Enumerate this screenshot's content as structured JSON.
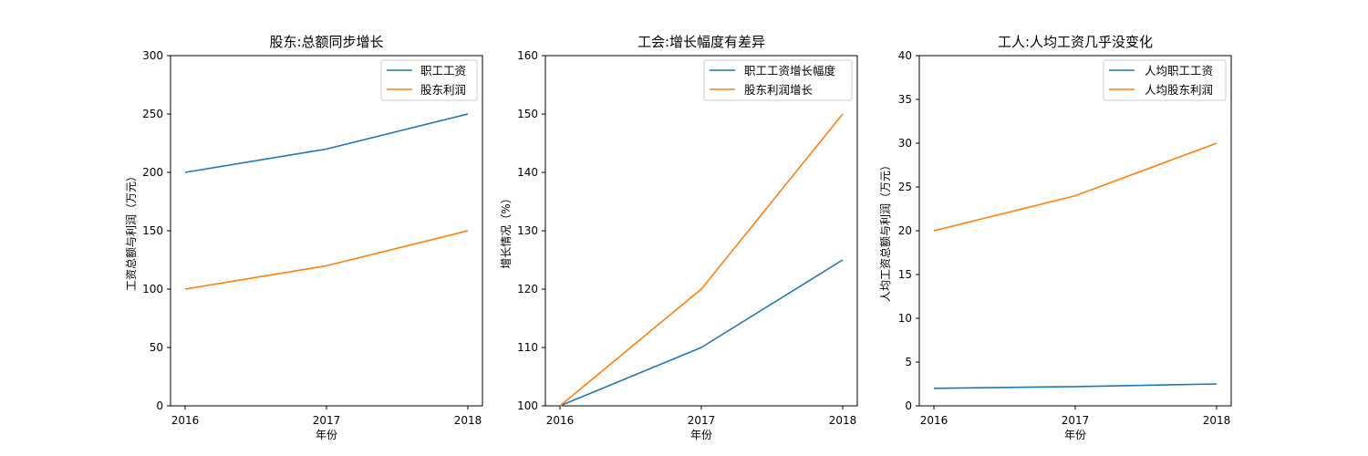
{
  "colors": {
    "series1": "#1f77b4",
    "series2": "#ff7f0e"
  },
  "chart_data": [
    {
      "type": "line",
      "title": "股东:总额同步增长",
      "xlabel": "年份",
      "ylabel": "工资总额与利润（万元）",
      "x": [
        "2016",
        "2017",
        "2018"
      ],
      "ylim": [
        0,
        300
      ],
      "yticks": [
        0,
        50,
        100,
        150,
        200,
        250,
        300
      ],
      "legend_position": "top-right",
      "series": [
        {
          "name": "职工工资",
          "values": [
            200,
            220,
            250
          ]
        },
        {
          "name": "股东利润",
          "values": [
            100,
            120,
            150
          ]
        }
      ]
    },
    {
      "type": "line",
      "title": "工会:增长幅度有差异",
      "xlabel": "年份",
      "ylabel": "增长情况（%）",
      "x": [
        "2016",
        "2017",
        "2018"
      ],
      "ylim": [
        100,
        160
      ],
      "yticks": [
        100,
        110,
        120,
        130,
        140,
        150,
        160
      ],
      "legend_position": "top-right",
      "series": [
        {
          "name": "职工工资增长幅度",
          "values": [
            100,
            110,
            125
          ]
        },
        {
          "name": "股东利润增长",
          "values": [
            100,
            120,
            150
          ]
        }
      ]
    },
    {
      "type": "line",
      "title": "工人:人均工资几乎没变化",
      "xlabel": "年份",
      "ylabel": "人均工资总额与利润（万元）",
      "x": [
        "2016",
        "2017",
        "2018"
      ],
      "ylim": [
        0,
        40
      ],
      "yticks": [
        0,
        5,
        10,
        15,
        20,
        25,
        30,
        35,
        40
      ],
      "legend_position": "top-right",
      "series": [
        {
          "name": "人均职工工资",
          "values": [
            2,
            2.2,
            2.5
          ]
        },
        {
          "name": "人均股东利润",
          "values": [
            20,
            24,
            30
          ]
        }
      ]
    }
  ]
}
